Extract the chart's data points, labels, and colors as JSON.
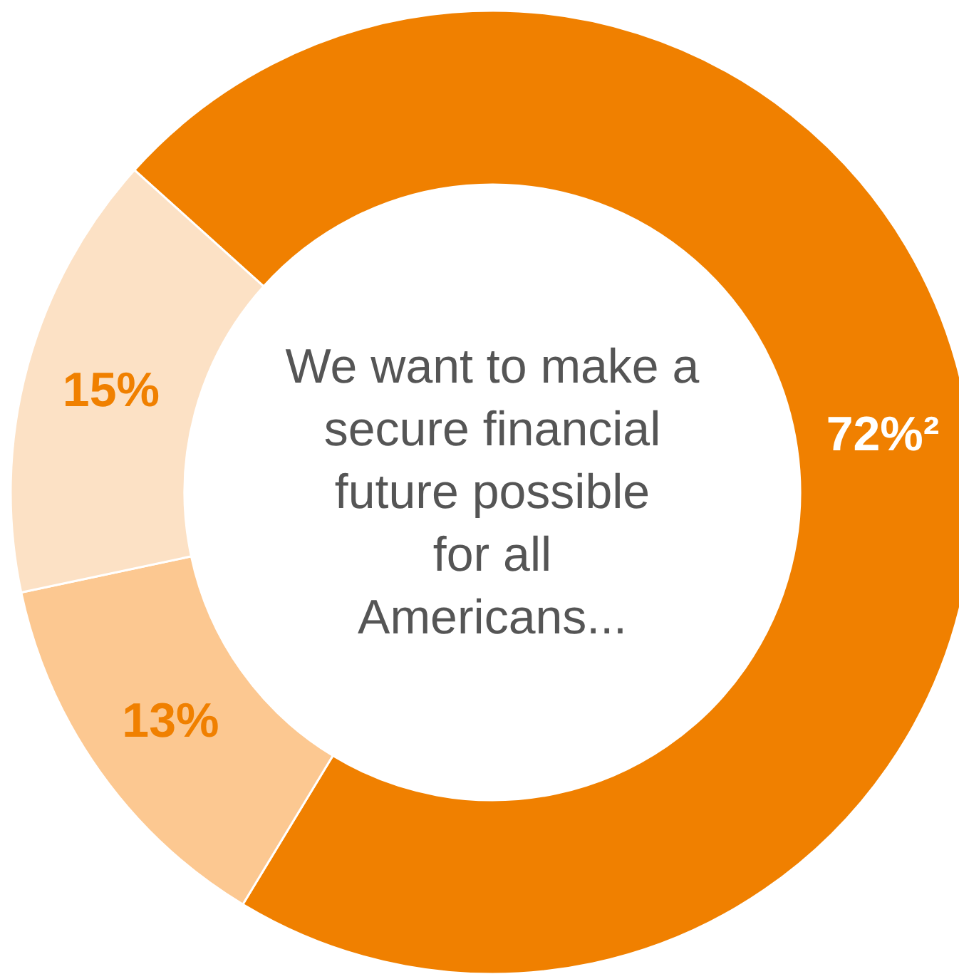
{
  "chart_data": {
    "type": "donut",
    "categories": [
      null,
      null,
      null
    ],
    "values": [
      72,
      13,
      15
    ],
    "colors": [
      "#f08000",
      "#fcc891",
      "#fce1c5"
    ],
    "value_labels": [
      "72%²",
      "13%",
      "15%"
    ],
    "annotations": [
      "We want to make a secure financial future possible for all Americans..."
    ]
  }
}
